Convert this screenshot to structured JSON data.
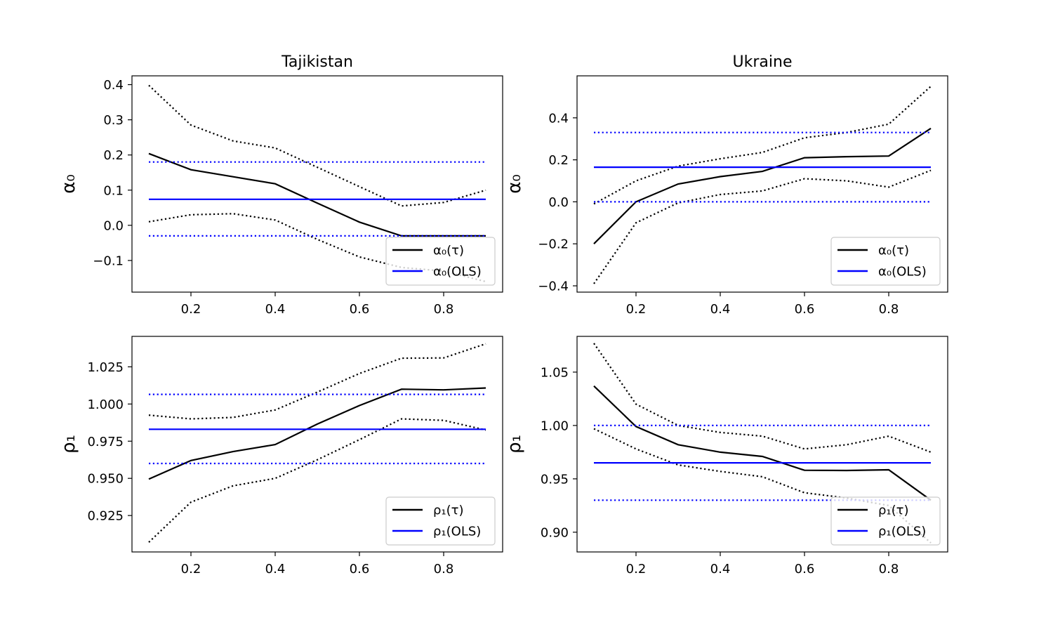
{
  "chart_data": [
    {
      "type": "line",
      "title": "Tajikistan",
      "xlabel": "",
      "ylabel": "α₀",
      "xlim": [
        0.06,
        0.94
      ],
      "ylim": [
        -0.19,
        0.425
      ],
      "xticks": [
        0.2,
        0.4,
        0.6,
        0.8
      ],
      "xtick_labels": [
        "0.2",
        "0.4",
        "0.6",
        "0.8"
      ],
      "yticks": [
        -0.1,
        0.0,
        0.1,
        0.2,
        0.3,
        0.4
      ],
      "ytick_labels": [
        "−0.1",
        "0.0",
        "0.1",
        "0.2",
        "0.3",
        "0.4"
      ],
      "legend_position": "lower right",
      "grid": false,
      "series": [
        {
          "name": "α₀(τ)",
          "style": "solid",
          "color": "#000000",
          "x": [
            0.1,
            0.2,
            0.3,
            0.4,
            0.5,
            0.6,
            0.7,
            0.8,
            0.9
          ],
          "y": [
            0.204,
            0.158,
            0.138,
            0.118,
            0.063,
            0.009,
            -0.03,
            -0.03,
            -0.03
          ]
        },
        {
          "name": "",
          "style": "dotted",
          "color": "#000000",
          "x": [
            0.1,
            0.2,
            0.3,
            0.4,
            0.5,
            0.6,
            0.7,
            0.8,
            0.9
          ],
          "y": [
            0.398,
            0.285,
            0.24,
            0.22,
            0.165,
            0.11,
            0.055,
            0.065,
            0.1
          ]
        },
        {
          "name": "",
          "style": "dotted",
          "color": "#000000",
          "x": [
            0.1,
            0.2,
            0.3,
            0.4,
            0.5,
            0.6,
            0.7,
            0.8,
            0.9
          ],
          "y": [
            0.01,
            0.03,
            0.033,
            0.015,
            -0.04,
            -0.09,
            -0.12,
            -0.13,
            -0.16
          ]
        },
        {
          "name": "α₀(OLS)",
          "style": "solid",
          "color": "#0000ff",
          "x": [
            0.1,
            0.9
          ],
          "y": [
            0.074,
            0.074
          ]
        },
        {
          "name": "",
          "style": "dotted",
          "color": "#0000ff",
          "x": [
            0.1,
            0.9
          ],
          "y": [
            0.18,
            0.18
          ]
        },
        {
          "name": "",
          "style": "dotted",
          "color": "#0000ff",
          "x": [
            0.1,
            0.9
          ],
          "y": [
            -0.03,
            -0.03
          ]
        }
      ]
    },
    {
      "type": "line",
      "title": "Ukraine",
      "xlabel": "",
      "ylabel": "α₀",
      "xlim": [
        0.06,
        0.94
      ],
      "ylim": [
        -0.43,
        0.6
      ],
      "xticks": [
        0.2,
        0.4,
        0.6,
        0.8
      ],
      "xtick_labels": [
        "0.2",
        "0.4",
        "0.6",
        "0.8"
      ],
      "yticks": [
        -0.4,
        -0.2,
        0.0,
        0.2,
        0.4
      ],
      "ytick_labels": [
        "−0.4",
        "−0.2",
        "0.0",
        "0.2",
        "0.4"
      ],
      "legend_position": "lower right",
      "grid": false,
      "series": [
        {
          "name": "α₀(τ)",
          "style": "solid",
          "color": "#000000",
          "x": [
            0.1,
            0.2,
            0.3,
            0.4,
            0.5,
            0.6,
            0.7,
            0.8,
            0.9
          ],
          "y": [
            -0.2,
            0.0,
            0.085,
            0.12,
            0.145,
            0.21,
            0.215,
            0.218,
            0.35
          ]
        },
        {
          "name": "",
          "style": "dotted",
          "color": "#000000",
          "x": [
            0.1,
            0.2,
            0.3,
            0.4,
            0.5,
            0.6,
            0.7,
            0.8,
            0.9
          ],
          "y": [
            -0.01,
            0.1,
            0.17,
            0.205,
            0.235,
            0.305,
            0.33,
            0.37,
            0.55
          ]
        },
        {
          "name": "",
          "style": "dotted",
          "color": "#000000",
          "x": [
            0.1,
            0.2,
            0.3,
            0.4,
            0.5,
            0.6,
            0.7,
            0.8,
            0.9
          ],
          "y": [
            -0.39,
            -0.1,
            -0.005,
            0.035,
            0.052,
            0.11,
            0.1,
            0.07,
            0.15
          ]
        },
        {
          "name": "α₀(OLS)",
          "style": "solid",
          "color": "#0000ff",
          "x": [
            0.1,
            0.9
          ],
          "y": [
            0.165,
            0.165
          ]
        },
        {
          "name": "",
          "style": "dotted",
          "color": "#0000ff",
          "x": [
            0.1,
            0.9
          ],
          "y": [
            0.33,
            0.33
          ]
        },
        {
          "name": "",
          "style": "dotted",
          "color": "#0000ff",
          "x": [
            0.1,
            0.9
          ],
          "y": [
            0.0,
            0.0
          ]
        }
      ]
    },
    {
      "type": "line",
      "title": "",
      "xlabel": "",
      "ylabel": "ρ₁",
      "xlim": [
        0.06,
        0.94
      ],
      "ylim": [
        0.9005,
        1.0455
      ],
      "xticks": [
        0.2,
        0.4,
        0.6,
        0.8
      ],
      "xtick_labels": [
        "0.2",
        "0.4",
        "0.6",
        "0.8"
      ],
      "yticks": [
        0.925,
        0.95,
        0.975,
        1.0,
        1.025
      ],
      "ytick_labels": [
        "0.925",
        "0.950",
        "0.975",
        "1.000",
        "1.025"
      ],
      "legend_position": "lower right",
      "grid": false,
      "series": [
        {
          "name": "ρ₁(τ)",
          "style": "solid",
          "color": "#000000",
          "x": [
            0.1,
            0.2,
            0.3,
            0.4,
            0.5,
            0.6,
            0.7,
            0.8,
            0.9
          ],
          "y": [
            0.9495,
            0.962,
            0.968,
            0.9727,
            0.9865,
            0.999,
            1.01,
            1.0095,
            1.0108
          ]
        },
        {
          "name": "",
          "style": "dotted",
          "color": "#000000",
          "x": [
            0.1,
            0.2,
            0.3,
            0.4,
            0.5,
            0.6,
            0.7,
            0.8,
            0.9
          ],
          "y": [
            0.9925,
            0.99,
            0.991,
            0.996,
            1.008,
            1.0205,
            1.0308,
            1.031,
            1.0405
          ]
        },
        {
          "name": "",
          "style": "dotted",
          "color": "#000000",
          "x": [
            0.1,
            0.2,
            0.3,
            0.4,
            0.5,
            0.6,
            0.7,
            0.8,
            0.9
          ],
          "y": [
            0.907,
            0.934,
            0.945,
            0.95,
            0.9625,
            0.976,
            0.99,
            0.989,
            0.9825
          ]
        },
        {
          "name": "ρ₁(OLS)",
          "style": "solid",
          "color": "#0000ff",
          "x": [
            0.1,
            0.9
          ],
          "y": [
            0.983,
            0.983
          ]
        },
        {
          "name": "",
          "style": "dotted",
          "color": "#0000ff",
          "x": [
            0.1,
            0.9
          ],
          "y": [
            1.0065,
            1.0065
          ]
        },
        {
          "name": "",
          "style": "dotted",
          "color": "#0000ff",
          "x": [
            0.1,
            0.9
          ],
          "y": [
            0.96,
            0.96
          ]
        }
      ]
    },
    {
      "type": "line",
      "title": "",
      "xlabel": "",
      "ylabel": "ρ₁",
      "xlim": [
        0.06,
        0.94
      ],
      "ylim": [
        0.8815,
        1.0835
      ],
      "xticks": [
        0.2,
        0.4,
        0.6,
        0.8
      ],
      "xtick_labels": [
        "0.2",
        "0.4",
        "0.6",
        "0.8"
      ],
      "yticks": [
        0.9,
        0.95,
        1.0,
        1.05
      ],
      "ytick_labels": [
        "0.90",
        "0.95",
        "1.00",
        "1.05"
      ],
      "legend_position": "lower right",
      "grid": false,
      "series": [
        {
          "name": "ρ₁(τ)",
          "style": "solid",
          "color": "#000000",
          "x": [
            0.1,
            0.2,
            0.3,
            0.4,
            0.5,
            0.6,
            0.7,
            0.8,
            0.9
          ],
          "y": [
            1.037,
            0.999,
            0.982,
            0.975,
            0.971,
            0.958,
            0.9578,
            0.9585,
            0.93
          ]
        },
        {
          "name": "",
          "style": "dotted",
          "color": "#000000",
          "x": [
            0.1,
            0.2,
            0.3,
            0.4,
            0.5,
            0.6,
            0.7,
            0.8,
            0.9
          ],
          "y": [
            1.077,
            1.02,
            1.0,
            0.9935,
            0.99,
            0.978,
            0.982,
            0.99,
            0.975
          ]
        },
        {
          "name": "",
          "style": "dotted",
          "color": "#000000",
          "x": [
            0.1,
            0.2,
            0.3,
            0.4,
            0.5,
            0.6,
            0.7,
            0.8,
            0.9
          ],
          "y": [
            0.997,
            0.978,
            0.963,
            0.957,
            0.952,
            0.937,
            0.932,
            0.925,
            0.89
          ]
        },
        {
          "name": "ρ₁(OLS)",
          "style": "solid",
          "color": "#0000ff",
          "x": [
            0.1,
            0.9
          ],
          "y": [
            0.965,
            0.965
          ]
        },
        {
          "name": "",
          "style": "dotted",
          "color": "#0000ff",
          "x": [
            0.1,
            0.9
          ],
          "y": [
            1.0,
            1.0
          ]
        },
        {
          "name": "",
          "style": "dotted",
          "color": "#0000ff",
          "x": [
            0.1,
            0.9
          ],
          "y": [
            0.93,
            0.93
          ]
        }
      ]
    }
  ]
}
